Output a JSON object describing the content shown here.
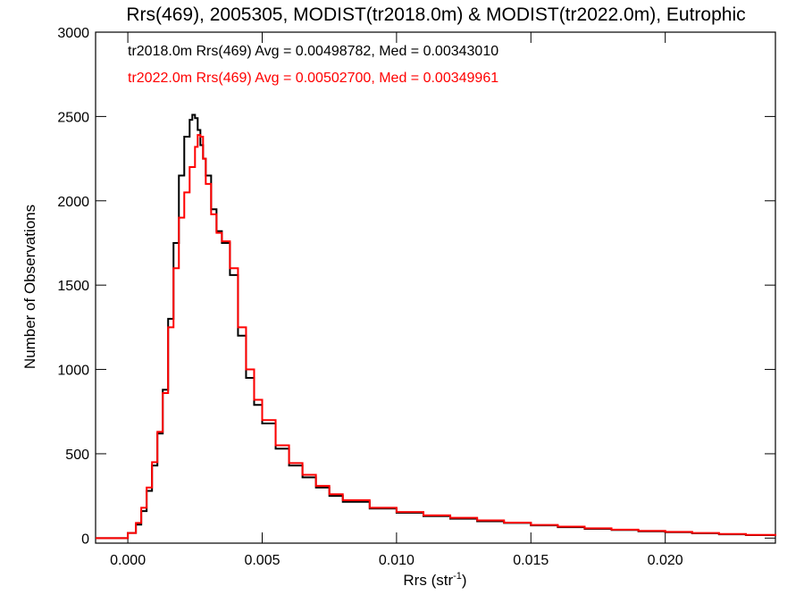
{
  "chart_data": {
    "type": "line",
    "title": "Rrs(469), 2005305, MODIST(tr2018.0m) & MODIST(tr2022.0m), Eutrophic",
    "xlabel": "Rrs (str",
    "xlabel_sup": "-1",
    "xlabel_end": ")",
    "ylabel": "Number of Observations",
    "xlim": [
      -0.0012,
      0.0241
    ],
    "ylim": [
      -30,
      3000
    ],
    "x_ticks": [
      0.0,
      0.005,
      0.01,
      0.015,
      0.02
    ],
    "x_tick_labels": [
      "0.000",
      "0.005",
      "0.010",
      "0.015",
      "0.020"
    ],
    "y_ticks": [
      0,
      500,
      1000,
      1500,
      2000,
      2500,
      3000
    ],
    "y_tick_labels": [
      "0",
      "500",
      "1000",
      "1500",
      "2000",
      "2500",
      "3000"
    ],
    "grid": false,
    "legend_position": "top-left",
    "series": [
      {
        "name": "tr2018.0m Rrs(469) Avg = 0.00498782, Med = 0.00343010",
        "color": "#000000",
        "x": [
          -0.0012,
          -0.0002,
          0.0,
          0.0003,
          0.0005,
          0.0007,
          0.0009,
          0.0011,
          0.0013,
          0.0015,
          0.0017,
          0.0019,
          0.0021,
          0.0023,
          0.0024,
          0.0025,
          0.0026,
          0.0027,
          0.0028,
          0.0029,
          0.0031,
          0.0033,
          0.0035,
          0.0038,
          0.0041,
          0.0044,
          0.0047,
          0.005,
          0.0055,
          0.006,
          0.0065,
          0.007,
          0.0075,
          0.008,
          0.009,
          0.01,
          0.011,
          0.012,
          0.013,
          0.014,
          0.015,
          0.016,
          0.017,
          0.018,
          0.019,
          0.02,
          0.021,
          0.022,
          0.023,
          0.0241
        ],
        "values": [
          0,
          0,
          30,
          80,
          160,
          280,
          430,
          620,
          880,
          1300,
          1750,
          2150,
          2380,
          2480,
          2510,
          2490,
          2420,
          2330,
          2250,
          2150,
          1950,
          1820,
          1750,
          1560,
          1200,
          950,
          790,
          680,
          530,
          430,
          360,
          300,
          250,
          215,
          175,
          150,
          130,
          115,
          100,
          90,
          75,
          65,
          55,
          48,
          40,
          35,
          28,
          22,
          18,
          12
        ]
      },
      {
        "name": "tr2022.0m Rrs(469) Avg = 0.00502700, Med = 0.00349961",
        "color": "#ff0000",
        "x": [
          -0.0012,
          -0.0002,
          0.0,
          0.0003,
          0.0005,
          0.0007,
          0.0009,
          0.0011,
          0.0013,
          0.0015,
          0.0017,
          0.0019,
          0.0021,
          0.0023,
          0.0025,
          0.0026,
          0.0027,
          0.0028,
          0.0029,
          0.0031,
          0.0033,
          0.0035,
          0.0038,
          0.0041,
          0.0044,
          0.0047,
          0.005,
          0.0055,
          0.006,
          0.0065,
          0.007,
          0.0075,
          0.008,
          0.009,
          0.01,
          0.011,
          0.012,
          0.013,
          0.014,
          0.015,
          0.016,
          0.017,
          0.018,
          0.019,
          0.02,
          0.021,
          0.022,
          0.023,
          0.0241
        ],
        "values": [
          0,
          0,
          30,
          90,
          180,
          300,
          450,
          630,
          860,
          1250,
          1600,
          1900,
          2050,
          2200,
          2320,
          2390,
          2380,
          2250,
          2100,
          1920,
          1810,
          1760,
          1600,
          1250,
          1000,
          820,
          700,
          550,
          445,
          375,
          310,
          260,
          225,
          180,
          155,
          135,
          120,
          105,
          92,
          78,
          68,
          58,
          50,
          43,
          37,
          30,
          24,
          19,
          13
        ]
      }
    ]
  }
}
